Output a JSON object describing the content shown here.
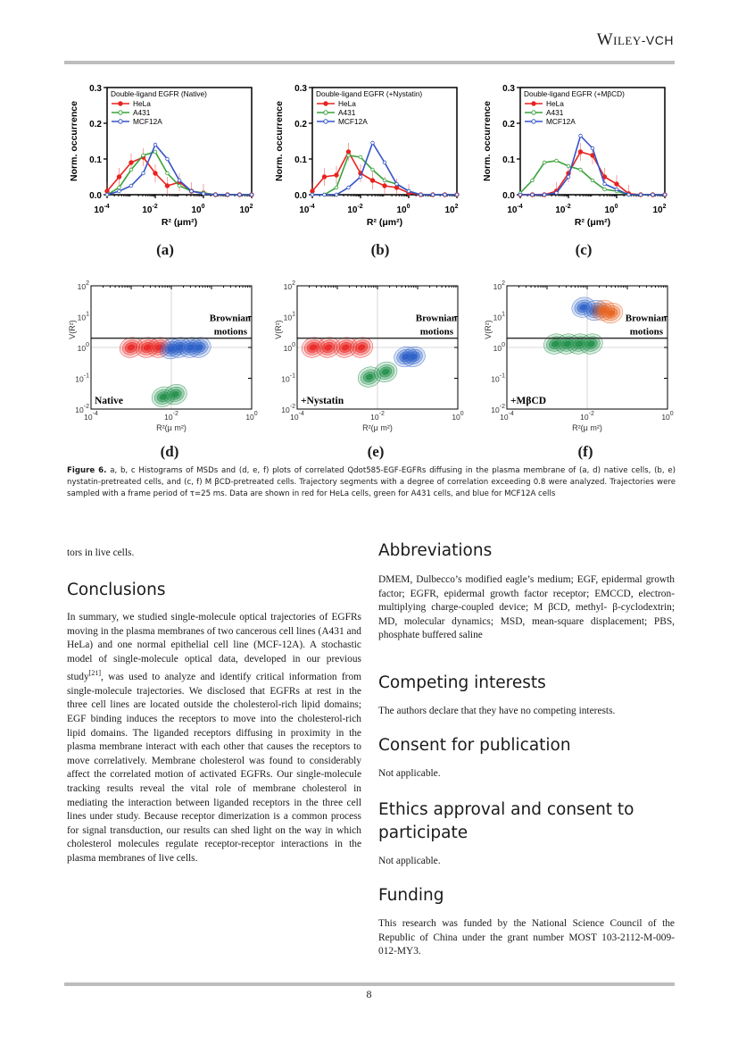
{
  "header": {
    "publisher_main": "Wiley",
    "publisher_suffix": "-VCH"
  },
  "figure": {
    "histograms": [
      {
        "label": "(a)",
        "legend_title": "Double-ligand EGFR (Native)"
      },
      {
        "label": "(b)",
        "legend_title": "Double-ligand EGFR (+Nystatin)"
      },
      {
        "label": "(c)",
        "legend_title": "Double-ligand EGFR (+MβCD)"
      }
    ],
    "contours": [
      {
        "label": "(d)",
        "condition": "Native",
        "annotation": [
          "Brownian",
          "motions"
        ]
      },
      {
        "label": "(e)",
        "condition": "+Nystatin",
        "annotation": [
          "Brownian",
          "motions"
        ]
      },
      {
        "label": "(f)",
        "condition": "+MβCD",
        "annotation": [
          "Brownian",
          "motions"
        ]
      }
    ],
    "caption": {
      "lead": "Figure 6.",
      "text": "a, b, c Histograms of MSDs and (d, e, f) plots of correlated Qdot585-EGF-EGFRs diffusing in the plasma membrane of (a, d) native cells, (b, e) nystatin-pretreated cells, and (c, f) M βCD-pretreated cells. Trajectory segments with a degree of correlation exceeding 0.8 were analyzed. Trajectories were sampled with a frame period of τ=25 ms. Data are shown in red for HeLa cells, green for A431 cells, and blue for MCF12A cells"
    }
  },
  "chart_data": [
    {
      "type": "line",
      "panel": "a",
      "ylabel": "Norm. occurrence",
      "xlabel": "R² (μm²)",
      "xscale": "log",
      "xlim": [
        0.0001,
        100
      ],
      "ylim": [
        0,
        0.3
      ],
      "yticks": [
        "0.0",
        "0.1",
        "0.2",
        "0.3"
      ],
      "xticks": [
        "10^-4",
        "10^-2",
        "10^0",
        "10^2"
      ],
      "x": [
        0.0001,
        0.000316,
        0.001,
        0.00316,
        0.01,
        0.0316,
        0.1,
        0.316,
        1,
        3.16,
        10,
        31.6,
        100
      ],
      "series": [
        {
          "name": "HeLa",
          "color": "#e8231f",
          "values": [
            0.01,
            0.05,
            0.09,
            0.105,
            0.06,
            0.025,
            0.035,
            0.01,
            0.005,
            0,
            0,
            0,
            0
          ]
        },
        {
          "name": "A431",
          "color": "#3aa33a",
          "values": [
            0,
            0.02,
            0.07,
            0.11,
            0.12,
            0.06,
            0.025,
            0.01,
            0.005,
            0,
            0,
            0,
            0
          ]
        },
        {
          "name": "MCF12A",
          "color": "#3553c8",
          "values": [
            0,
            0.01,
            0.025,
            0.06,
            0.14,
            0.1,
            0.04,
            0.01,
            0.003,
            0,
            0,
            0,
            0
          ]
        }
      ]
    },
    {
      "type": "line",
      "panel": "b",
      "ylabel": "Norm. occurrence",
      "xlabel": "R² (μm²)",
      "xscale": "log",
      "xlim": [
        0.0001,
        100
      ],
      "ylim": [
        0,
        0.3
      ],
      "yticks": [
        "0.0",
        "0.1",
        "0.2",
        "0.3"
      ],
      "xticks": [
        "10^-4",
        "10^-2",
        "10^0",
        "10^2"
      ],
      "x": [
        0.0001,
        0.000316,
        0.001,
        0.00316,
        0.01,
        0.0316,
        0.1,
        0.316,
        1,
        3.16,
        10,
        31.6,
        100
      ],
      "series": [
        {
          "name": "HeLa",
          "color": "#e8231f",
          "values": [
            0.01,
            0.05,
            0.055,
            0.12,
            0.06,
            0.04,
            0.025,
            0.02,
            0.005,
            0,
            0,
            0,
            0
          ]
        },
        {
          "name": "A431",
          "color": "#3aa33a",
          "values": [
            0,
            0,
            0.02,
            0.11,
            0.105,
            0.07,
            0.04,
            0.03,
            0.01,
            0,
            0,
            0,
            0
          ]
        },
        {
          "name": "MCF12A",
          "color": "#3553c8",
          "values": [
            0,
            0,
            0,
            0.02,
            0.05,
            0.145,
            0.09,
            0.03,
            0.01,
            0,
            0,
            0,
            0
          ]
        }
      ]
    },
    {
      "type": "line",
      "panel": "c",
      "ylabel": "Norm. occurrence",
      "xlabel": "R² (μm²)",
      "xscale": "log",
      "xlim": [
        0.0001,
        100
      ],
      "ylim": [
        0,
        0.3
      ],
      "yticks": [
        "0.0",
        "0.1",
        "0.2",
        "0.3"
      ],
      "xticks": [
        "10^-4",
        "10^-2",
        "10^0",
        "10^2"
      ],
      "x": [
        0.0001,
        0.000316,
        0.001,
        0.00316,
        0.01,
        0.0316,
        0.1,
        0.316,
        1,
        3.16,
        10,
        31.6,
        100
      ],
      "series": [
        {
          "name": "HeLa",
          "color": "#e8231f",
          "values": [
            0,
            0,
            0,
            0.01,
            0.06,
            0.12,
            0.11,
            0.05,
            0.03,
            0.003,
            0,
            0,
            0
          ]
        },
        {
          "name": "A431",
          "color": "#3aa33a",
          "values": [
            0.005,
            0.04,
            0.09,
            0.095,
            0.08,
            0.07,
            0.04,
            0.015,
            0.01,
            0,
            0,
            0,
            0
          ]
        },
        {
          "name": "MCF12A",
          "color": "#3553c8",
          "values": [
            0,
            0,
            0,
            0.005,
            0.05,
            0.165,
            0.13,
            0.03,
            0.015,
            0,
            0,
            0,
            0
          ]
        }
      ]
    },
    {
      "type": "heatmap",
      "panel": "d",
      "ylabel": "V(R²)",
      "xlabel": "R²(μ m²)",
      "xscale": "log",
      "yscale": "log",
      "xlim": [
        0.0001,
        1
      ],
      "ylim": [
        0.01,
        100
      ],
      "brownian_line_y": 2,
      "clusters": [
        {
          "series": "HeLa",
          "color": "#e8231f",
          "centers": [
            [
              0.001,
              1
            ],
            [
              0.0025,
              1
            ],
            [
              0.005,
              1
            ]
          ]
        },
        {
          "series": "MCF12A",
          "color": "#2a5fc8",
          "centers": [
            [
              0.01,
              0.9
            ],
            [
              0.016,
              1
            ],
            [
              0.03,
              1
            ],
            [
              0.05,
              1
            ]
          ]
        },
        {
          "series": "A431",
          "color": "#1f8f4a",
          "centers": [
            [
              0.0063,
              0.025
            ],
            [
              0.0126,
              0.03
            ]
          ]
        }
      ]
    },
    {
      "type": "heatmap",
      "panel": "e",
      "ylabel": "V(R²)",
      "xlabel": "R²(μ m²)",
      "xscale": "log",
      "yscale": "log",
      "xlim": [
        0.0001,
        1
      ],
      "ylim": [
        0.01,
        100
      ],
      "brownian_line_y": 2,
      "clusters": [
        {
          "series": "HeLa",
          "color": "#e8231f",
          "centers": [
            [
              0.00025,
              1
            ],
            [
              0.0006,
              1
            ],
            [
              0.0016,
              1
            ],
            [
              0.004,
              1
            ]
          ]
        },
        {
          "series": "A431",
          "color": "#1f8f4a",
          "centers": [
            [
              0.0063,
              0.11
            ],
            [
              0.016,
              0.16
            ]
          ]
        },
        {
          "series": "MCF12A",
          "color": "#2a5fc8",
          "centers": [
            [
              0.05,
              0.5
            ],
            [
              0.08,
              0.5
            ]
          ]
        }
      ]
    },
    {
      "type": "heatmap",
      "panel": "f",
      "ylabel": "V(R²)",
      "xlabel": "R²(μ m²)",
      "xscale": "log",
      "yscale": "log",
      "xlim": [
        0.0001,
        1
      ],
      "ylim": [
        0.01,
        100
      ],
      "brownian_line_y": 2,
      "clusters": [
        {
          "series": "A431",
          "color": "#1f8f4a",
          "centers": [
            [
              0.0016,
              1.3
            ],
            [
              0.0032,
              1.3
            ],
            [
              0.0063,
              1.3
            ],
            [
              0.0126,
              1.3
            ]
          ]
        },
        {
          "series": "MCF12A",
          "color": "#2a5fc8",
          "centers": [
            [
              0.008,
              20
            ],
            [
              0.016,
              16
            ]
          ]
        },
        {
          "series": "HeLa",
          "color": "#e8631f",
          "centers": [
            [
              0.04,
              13
            ],
            [
              0.025,
              16
            ]
          ]
        }
      ]
    }
  ],
  "body": {
    "left_fragment": "tors in live cells.",
    "conclusions_heading": "Conclusions",
    "conclusions_text_1": "In summary, we studied single-molecule optical trajectories of EGFRs moving in the plasma membranes of two cancerous cell lines (A431 and HeLa) and one normal epithelial cell line (MCF-12A). A stochastic model of single-molecule optical data, developed in our previous study",
    "conclusions_ref": "[21]",
    "conclusions_text_2": ", was used to analyze and identify critical information from single-molecule trajectories.  We disclosed that EGFRs at rest in the three cell lines are located outside the cholesterol-rich lipid domains; EGF binding induces the receptors to move into the cholesterol-rich lipid domains.  The liganded receptors diffusing in proximity in the plasma membrane interact with each other that causes the receptors to move correlatively.  Membrane cholesterol was found to considerably affect the correlated motion of activated EGFRs.  Our single-molecule tracking results reveal the vital role of membrane cholesterol in mediating the interaction between liganded receptors in the three cell lines under study.  Because receptor dimerization is a common process for signal transduction, our results can shed light on the way in which cholesterol molecules regulate receptor-receptor interactions in the plasma membranes of live cells.",
    "abbreviations_heading": "Abbreviations",
    "abbreviations_text": "DMEM, Dulbecco’s modified eagle’s medium; EGF, epidermal growth factor; EGFR, epidermal growth factor receptor; EMCCD, electron-multiplying charge-coupled device; M βCD, methyl- β-cyclodextrin; MD, molecular dynamics; MSD, mean-square displacement; PBS, phosphate buffered saline",
    "competing_heading": "Competing interests",
    "competing_text": "The authors declare that they have no competing interests.",
    "consent_heading": "Consent for publication",
    "consent_text": "Not applicable.",
    "ethics_heading": "Ethics approval and consent to participate",
    "ethics_text": "Not applicable.",
    "funding_heading": "Funding",
    "funding_text": "This research was funded by the National Science Council of the Republic of China under the grant number MOST 103-2112-M-009-012-MY3."
  },
  "footer": {
    "page_number": "8"
  }
}
